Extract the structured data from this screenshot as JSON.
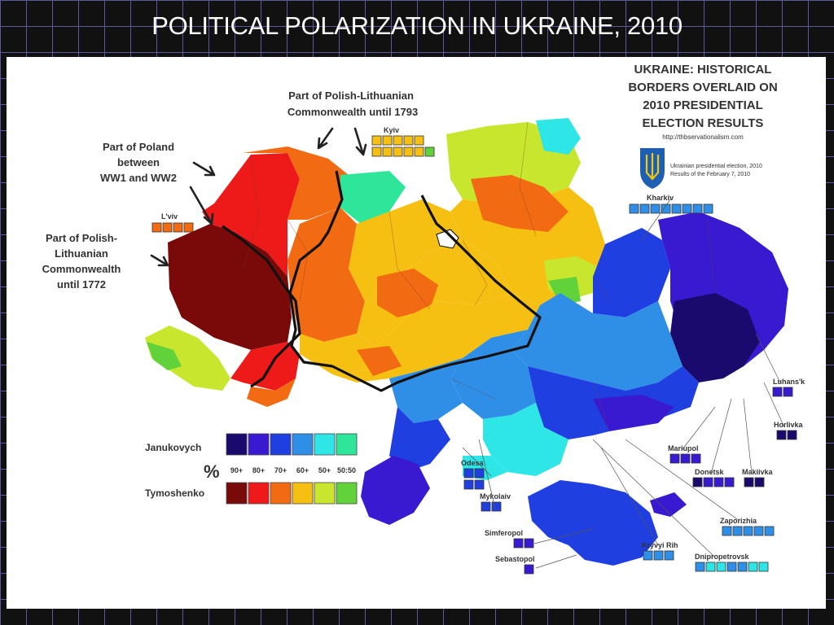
{
  "slide": {
    "title": "POLITICAL POLARIZATION IN UKRAINE, 2010"
  },
  "map": {
    "heading": [
      "UKRAINE: HISTORICAL",
      "BORDERS OVERLAID ON",
      "2010 PRESIDENTIAL",
      "ELECTION RESULTS"
    ],
    "source_url": "http://thbservationalism.com",
    "emblem_caption": [
      "Ukrainian presidential election, 2010",
      "Results of the February 7, 2010"
    ],
    "annotations": {
      "commonwealth_1793": [
        "Part of Polish-Lithuanian",
        "Commonwealth until 1793"
      ],
      "poland_ww": [
        "Part of Poland",
        "between",
        "WW1 and WW2"
      ],
      "commonwealth_1772": [
        "Part of Polish-",
        "Lithuanian",
        "Commonwealth",
        "until 1772"
      ]
    },
    "cities": {
      "kyiv": "Kyiv",
      "lviv": "L'viv",
      "kharkiv": "Kharkiv",
      "luhansk": "Luhans'k",
      "horlivka": "Horlivka",
      "mariupol": "Mariupol",
      "donetsk": "Donetsk",
      "makiivka": "Makiivka",
      "odesa": "Odesa",
      "mykolaiv": "Mykolaiv",
      "simferopol": "Simferopol",
      "sebastopol": "Sebastopol",
      "zaporizhia": "Zaporizhia",
      "kryvyi_rih": "Kryvyi Rih",
      "dnipropetrovsk": "Dnipropetrovsk"
    },
    "legend": {
      "janukovych_label": "Janukovych",
      "tymoshenko_label": "Tymoshenko",
      "percent_symbol": "%",
      "thresholds": [
        "90+",
        "80+",
        "70+",
        "60+",
        "50+",
        "50:50"
      ],
      "janukovych_colors": [
        "#1a0a6e",
        "#3a1ad0",
        "#1f3fe0",
        "#2f8fe6",
        "#2ee6e6",
        "#2ee69a"
      ],
      "tymoshenko_colors": [
        "#7a0a0a",
        "#ee1a1a",
        "#f26a12",
        "#f6c012",
        "#c8e62e",
        "#62d23a"
      ]
    }
  }
}
